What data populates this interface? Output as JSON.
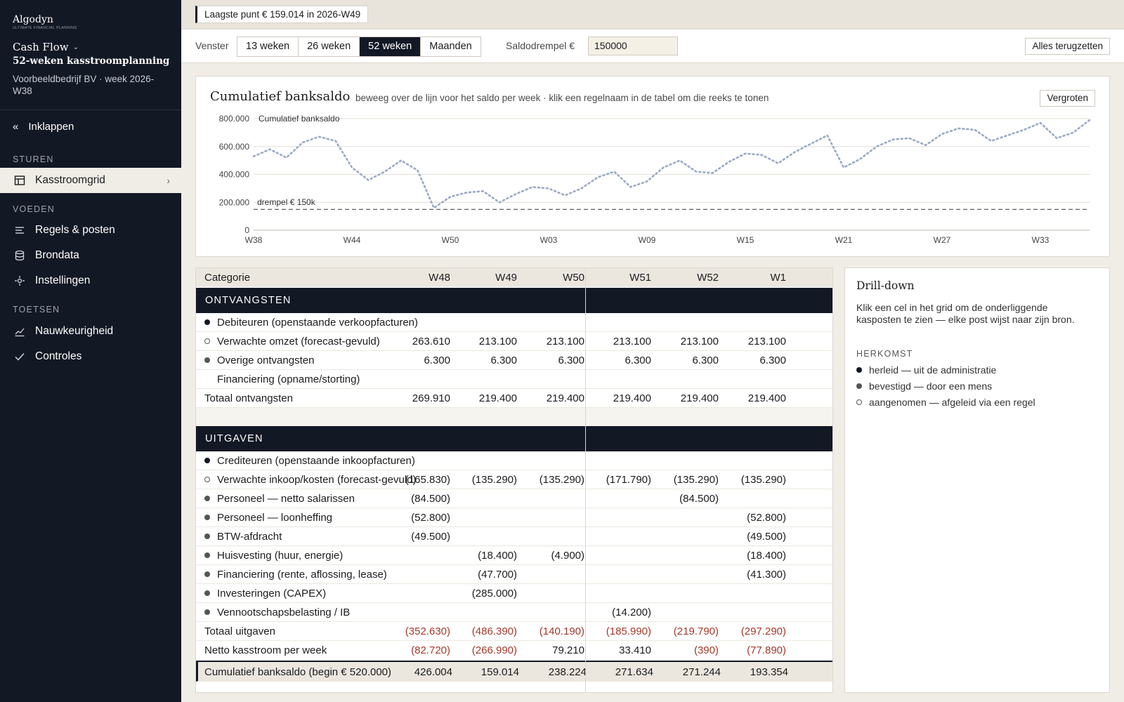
{
  "sidebar": {
    "brand": "Algodyn",
    "tagline": "ULTIMATE FINANCIAL PLANNING",
    "module": "Cash Flow",
    "plan_title": "52-weken kasstroomplanning",
    "company": "Voorbeeldbedrijf BV · week 2026-W38",
    "collapse_label": "Inklappen",
    "sections": [
      {
        "label": "STUREN",
        "items": [
          {
            "label": "Kasstroomgrid",
            "icon": "grid-icon",
            "active": true
          }
        ]
      },
      {
        "label": "VOEDEN",
        "items": [
          {
            "label": "Regels & posten",
            "icon": "rules-icon"
          },
          {
            "label": "Brondata",
            "icon": "database-icon"
          },
          {
            "label": "Instellingen",
            "icon": "settings-icon"
          }
        ]
      },
      {
        "label": "TOETSEN",
        "items": [
          {
            "label": "Nauwkeurigheid",
            "icon": "trend-icon"
          },
          {
            "label": "Controles",
            "icon": "check-icon"
          }
        ]
      }
    ]
  },
  "topbar": {
    "lowest_point": "Laagste punt € 159.014 in 2026-W49"
  },
  "controls": {
    "window_label": "Venster",
    "window_options": [
      "13 weken",
      "26 weken",
      "52 weken",
      "Maanden"
    ],
    "window_selected": "52 weken",
    "threshold_label": "Saldodrempel €",
    "threshold_value": "150000",
    "reset_label": "Alles terugzetten"
  },
  "chart": {
    "title": "Cumulatief banksaldo",
    "hint": "beweeg over de lijn voor het saldo per week · klik een regelnaam in de tabel om die reeks te tonen",
    "zoom_label": "Vergroten"
  },
  "chart_data": {
    "type": "line",
    "series": [
      {
        "name": "Cumulatief banksaldo",
        "color": "#9aa9c4",
        "style": "dotted",
        "values": [
          530000,
          580000,
          520000,
          630000,
          670000,
          640000,
          450000,
          360000,
          420000,
          500000,
          430000,
          160000,
          240000,
          270000,
          280000,
          200000,
          260000,
          310000,
          300000,
          250000,
          300000,
          380000,
          420000,
          310000,
          350000,
          450000,
          500000,
          420000,
          410000,
          490000,
          550000,
          540000,
          480000,
          560000,
          620000,
          680000,
          450000,
          510000,
          600000,
          650000,
          660000,
          610000,
          690000,
          730000,
          720000,
          640000,
          680000,
          720000,
          770000,
          660000,
          700000,
          790000
        ]
      }
    ],
    "x_ticks": [
      "W38",
      "W44",
      "W50",
      "W03",
      "W09",
      "W15",
      "W21",
      "W27",
      "W33"
    ],
    "y_ticks": [
      "0",
      "200.000",
      "400.000",
      "600.000",
      "800.000"
    ],
    "ylim": [
      0,
      800000
    ],
    "threshold": {
      "value": 150000,
      "label": "drempel € 150k",
      "style": "dashed"
    },
    "grid": true
  },
  "grid": {
    "header": {
      "category": "Categorie",
      "weeks": [
        "W48",
        "W49",
        "W50",
        "W51",
        "W52",
        "W1"
      ]
    },
    "sections": [
      {
        "title": "ONTVANGSTEN",
        "rows": [
          {
            "label": "Debiteuren (openstaande verkoopfacturen)",
            "provenance": "herleid",
            "values": [
              "",
              "",
              "",
              "",
              "",
              ""
            ]
          },
          {
            "label": "Verwachte omzet (forecast-gevuld)",
            "provenance": "aangenomen",
            "values": [
              "263.610",
              "213.100",
              "213.100",
              "213.100",
              "213.100",
              "213.100"
            ]
          },
          {
            "label": "Overige ontvangsten",
            "provenance": "bevestigd",
            "values": [
              "6.300",
              "6.300",
              "6.300",
              "6.300",
              "6.300",
              "6.300"
            ]
          },
          {
            "label": "Financiering (opname/storting)",
            "provenance": "none",
            "values": [
              "",
              "",
              "",
              "",
              "",
              ""
            ]
          }
        ],
        "total": {
          "label": "Totaal ontvangsten",
          "values": [
            "269.910",
            "219.400",
            "219.400",
            "219.400",
            "219.400",
            "219.400"
          ]
        }
      },
      {
        "title": "UITGAVEN",
        "rows": [
          {
            "label": "Crediteuren (openstaande inkoopfacturen)",
            "provenance": "herleid",
            "values": [
              "",
              "",
              "",
              "",
              "",
              ""
            ]
          },
          {
            "label": "Verwachte inkoop/kosten (forecast-gevuld)",
            "provenance": "aangenomen",
            "values": [
              "(165.830)",
              "(135.290)",
              "(135.290)",
              "(171.790)",
              "(135.290)",
              "(135.290)"
            ]
          },
          {
            "label": "Personeel — netto salarissen",
            "provenance": "bevestigd",
            "values": [
              "(84.500)",
              "",
              "",
              "",
              "(84.500)",
              ""
            ]
          },
          {
            "label": "Personeel — loonheffing",
            "provenance": "bevestigd",
            "values": [
              "(52.800)",
              "",
              "",
              "",
              "",
              "(52.800)"
            ]
          },
          {
            "label": "BTW-afdracht",
            "provenance": "bevestigd",
            "values": [
              "(49.500)",
              "",
              "",
              "",
              "",
              "(49.500)"
            ]
          },
          {
            "label": "Huisvesting (huur, energie)",
            "provenance": "bevestigd",
            "values": [
              "",
              "(18.400)",
              "(4.900)",
              "",
              "",
              "(18.400)"
            ]
          },
          {
            "label": "Financiering (rente, aflossing, lease)",
            "provenance": "bevestigd",
            "values": [
              "",
              "(47.700)",
              "",
              "",
              "",
              "(41.300)"
            ]
          },
          {
            "label": "Investeringen (CAPEX)",
            "provenance": "bevestigd",
            "values": [
              "",
              "(285.000)",
              "",
              "",
              "",
              ""
            ]
          },
          {
            "label": "Vennootschapsbelasting / IB",
            "provenance": "bevestigd",
            "values": [
              "",
              "",
              "",
              "(14.200)",
              "",
              ""
            ]
          }
        ],
        "total": {
          "label": "Totaal uitgaven",
          "values": [
            "(352.630)",
            "(486.390)",
            "(140.190)",
            "(185.990)",
            "(219.790)",
            "(297.290)"
          ]
        }
      }
    ],
    "net": {
      "label": "Netto kasstroom per week",
      "values": [
        "(82.720)",
        "(266.990)",
        "79.210",
        "33.410",
        "(390)",
        "(77.890)"
      ]
    },
    "cumulative": {
      "label": "Cumulatief banksaldo (begin € 520.000)",
      "values": [
        "426.004",
        "159.014",
        "238.224",
        "271.634",
        "271.244",
        "193.354"
      ]
    }
  },
  "drilldown": {
    "title": "Drill-down",
    "description": "Klik een cel in het grid om de onderliggende kasposten te zien — elke post wijst naar zijn bron.",
    "herkomst_label": "HERKOMST",
    "legend": [
      {
        "type": "herleid",
        "label": "herleid — uit de administratie"
      },
      {
        "type": "bevestigd",
        "label": "bevestigd — door een mens"
      },
      {
        "type": "aangenomen",
        "label": "aangenomen — afgeleid via een regel"
      }
    ]
  }
}
